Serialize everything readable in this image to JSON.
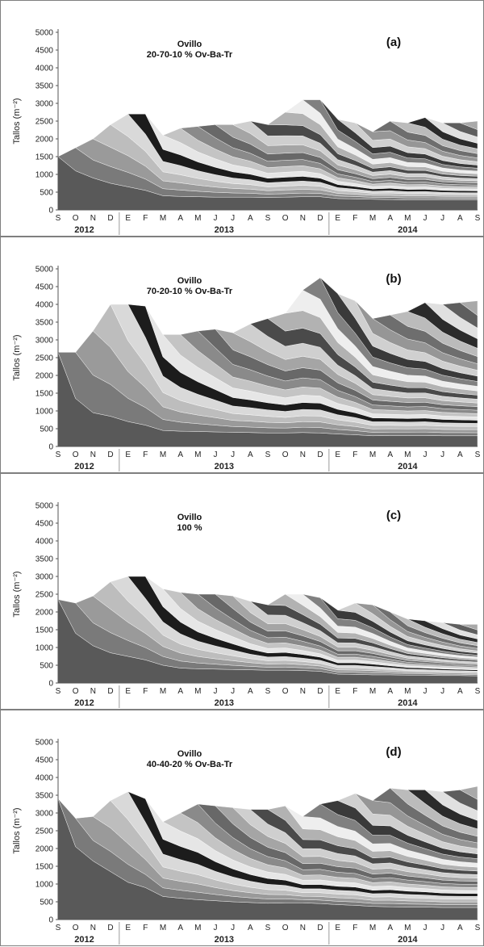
{
  "figure": {
    "stack_colors": [
      "#595959",
      "#7a7a7a",
      "#9a9a9a",
      "#bdbdbd",
      "#d9d9d9",
      "#1c1c1c",
      "#e6e6e6",
      "#c4c4c4",
      "#8a8a8a",
      "#686868",
      "#a5a5a5",
      "#cfcfcf",
      "#4a4a4a",
      "#b2b2b2",
      "#eeeeee",
      "#808080",
      "#3a3a3a",
      "#d0d0d0",
      "#969696",
      "#6e6e6e",
      "#bbbbbb",
      "#2b2b2b",
      "#e0e0e0",
      "#5e5e5e",
      "#a9a9a9"
    ],
    "panels": [
      {
        "panel_label": "(a)",
        "title_line1": "Ovillo",
        "title_line2": "20-70-10 % Ov-Ba-Tr"
      },
      {
        "panel_label": "(b)",
        "title_line1": "Ovillo",
        "title_line2": "70-20-10 % Ov-Ba-Tr"
      },
      {
        "panel_label": "(c)",
        "title_line1": "Ovillo",
        "title_line2": "100 %"
      },
      {
        "panel_label": "(d)",
        "title_line1": "Ovillo",
        "title_line2": "40-40-20 % Ov-Ba-Tr"
      }
    ]
  },
  "chart_data": [
    {
      "type": "area",
      "stacked": true,
      "ylabel": "Tallos (m⁻²)",
      "ylim": [
        0,
        5000
      ],
      "yticks": [
        0,
        500,
        1000,
        1500,
        2000,
        2500,
        3000,
        3500,
        4000,
        4500,
        5000
      ],
      "categories": [
        "S",
        "O",
        "N",
        "D",
        "E",
        "F",
        "M",
        "A",
        "M",
        "J",
        "J",
        "A",
        "S",
        "O",
        "N",
        "D",
        "E",
        "F",
        "M",
        "A",
        "M",
        "J",
        "J",
        "A",
        "S"
      ],
      "year_groups": [
        {
          "label": "2012",
          "from": 0,
          "to": 3
        },
        {
          "label": "2013",
          "from": 4,
          "to": 15
        },
        {
          "label": "2014",
          "from": 16,
          "to": 24
        }
      ],
      "totals": [
        1500,
        1750,
        2000,
        2400,
        2700,
        2700,
        2100,
        2300,
        2350,
        2400,
        2400,
        2500,
        2400,
        2750,
        3100,
        3100,
        2550,
        2450,
        2200,
        2500,
        2450,
        2600,
        2450,
        2450,
        2500
      ],
      "bottom_cohort": [
        1500,
        1100,
        900,
        750,
        650,
        550,
        400,
        380,
        370,
        360,
        360,
        360,
        350,
        360,
        370,
        370,
        320,
        310,
        300,
        290,
        280,
        280,
        280,
        280,
        280
      ]
    },
    {
      "type": "area",
      "stacked": true,
      "ylabel": "Tallos (m⁻²)",
      "ylim": [
        0,
        5000
      ],
      "yticks": [
        0,
        500,
        1000,
        1500,
        2000,
        2500,
        3000,
        3500,
        4000,
        4500,
        5000
      ],
      "categories": [
        "S",
        "O",
        "N",
        "D",
        "E",
        "F",
        "M",
        "A",
        "M",
        "J",
        "J",
        "A",
        "S",
        "O",
        "N",
        "D",
        "E",
        "F",
        "M",
        "A",
        "M",
        "J",
        "J",
        "A",
        "S"
      ],
      "year_groups": [
        {
          "label": "2012",
          "from": 0,
          "to": 3
        },
        {
          "label": "2013",
          "from": 4,
          "to": 15
        },
        {
          "label": "2014",
          "from": 16,
          "to": 24
        }
      ],
      "totals": [
        2650,
        2650,
        3250,
        4000,
        4000,
        3950,
        3150,
        3150,
        3250,
        3300,
        3200,
        3450,
        3600,
        3750,
        4400,
        4750,
        4300,
        4100,
        3600,
        3700,
        3800,
        4050,
        4000,
        4050,
        4100
      ],
      "bottom_cohort": [
        2650,
        1350,
        950,
        850,
        700,
        600,
        450,
        430,
        420,
        410,
        400,
        390,
        380,
        380,
        390,
        380,
        350,
        330,
        300,
        310,
        310,
        310,
        300,
        300,
        300
      ]
    },
    {
      "type": "area",
      "stacked": true,
      "ylabel": "Tallos (m⁻²)",
      "ylim": [
        0,
        5000
      ],
      "yticks": [
        0,
        500,
        1000,
        1500,
        2000,
        2500,
        3000,
        3500,
        4000,
        4500,
        5000
      ],
      "categories": [
        "S",
        "O",
        "N",
        "D",
        "E",
        "F",
        "M",
        "A",
        "M",
        "J",
        "J",
        "A",
        "S",
        "O",
        "N",
        "D",
        "E",
        "F",
        "M",
        "A",
        "M",
        "J",
        "J",
        "A",
        "S"
      ],
      "year_groups": [
        {
          "label": "2012",
          "from": 0,
          "to": 3
        },
        {
          "label": "2013",
          "from": 4,
          "to": 15
        },
        {
          "label": "2014",
          "from": 16,
          "to": 24
        }
      ],
      "totals": [
        2350,
        2250,
        2450,
        2850,
        3000,
        3000,
        2650,
        2550,
        2500,
        2500,
        2450,
        2300,
        2200,
        2500,
        2500,
        2400,
        2050,
        2250,
        2200,
        2000,
        1800,
        1750,
        1700,
        1650,
        1650
      ],
      "bottom_cohort": [
        2350,
        1400,
        1050,
        850,
        750,
        650,
        500,
        420,
        400,
        390,
        380,
        370,
        360,
        360,
        350,
        330,
        250,
        240,
        230,
        230,
        220,
        220,
        210,
        210,
        200
      ]
    },
    {
      "type": "area",
      "stacked": true,
      "ylabel": "Tallos (m⁻²)",
      "ylim": [
        0,
        5000
      ],
      "yticks": [
        0,
        500,
        1000,
        1500,
        2000,
        2500,
        3000,
        3500,
        4000,
        4500,
        5000
      ],
      "categories": [
        "S",
        "O",
        "N",
        "D",
        "E",
        "F",
        "M",
        "A",
        "M",
        "J",
        "J",
        "A",
        "S",
        "O",
        "N",
        "D",
        "E",
        "F",
        "M",
        "A",
        "M",
        "J",
        "J",
        "A",
        "S"
      ],
      "year_groups": [
        {
          "label": "2012",
          "from": 0,
          "to": 3
        },
        {
          "label": "2013",
          "from": 4,
          "to": 15
        },
        {
          "label": "2014",
          "from": 16,
          "to": 24
        }
      ],
      "totals": [
        3400,
        2850,
        2900,
        3350,
        3600,
        3400,
        2750,
        3000,
        3250,
        3200,
        3150,
        3100,
        3100,
        3200,
        2900,
        3250,
        3350,
        3550,
        3350,
        3700,
        3650,
        3650,
        3600,
        3650,
        3750
      ],
      "bottom_cohort": [
        3400,
        2050,
        1650,
        1350,
        1050,
        900,
        650,
        600,
        560,
        530,
        500,
        480,
        460,
        470,
        470,
        450,
        420,
        400,
        370,
        360,
        350,
        350,
        340,
        340,
        340
      ]
    }
  ]
}
